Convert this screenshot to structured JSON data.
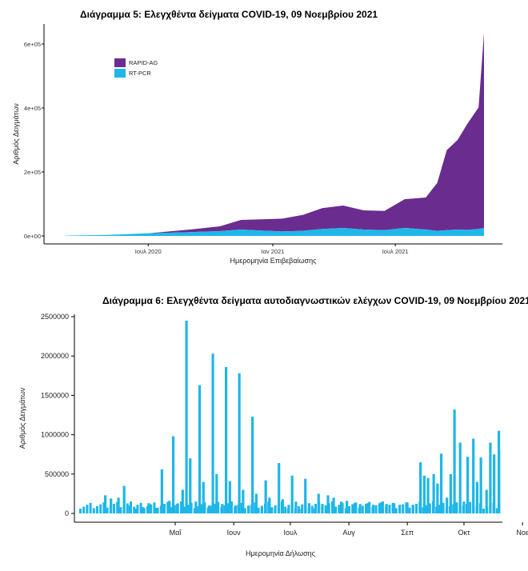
{
  "charts": [
    {
      "title": "Διάγραμμα 5: Ελεγχθέντα δείγματα COVID-19, 09 Νοεμβρίου 2021",
      "xlabel": "Ημερομηνία Επιβεβαίωσης",
      "ylabel": "Αριθμός Δειγμάτων",
      "y_ticks": [
        "0e+00",
        "2e+05",
        "4e+05",
        "6e+05"
      ],
      "x_ticks": [
        "Ιουλ 2020",
        "Ιαν 2021",
        "Ιουλ 2021"
      ],
      "legend": [
        "RAPID-AG",
        "RT-PCR"
      ]
    },
    {
      "title": "Διάγραμμα 6: Ελεγχθέντα δείγματα αυτοδιαγνωστικών ελέγχων COVID-19, 09 Νοεμβρίου 2021",
      "xlabel": "Ημερομηνία Δήλωσης",
      "ylabel": "Αριθμός Δειγμάτων",
      "y_ticks": [
        "0",
        "500000",
        "1000000",
        "1500000",
        "2000000",
        "2500000"
      ],
      "x_ticks": [
        "Μαΐ",
        "Ιουν",
        "Ιουλ",
        "Αυγ",
        "Σεπ",
        "Οκτ",
        "Νοε"
      ]
    }
  ],
  "chart_data": [
    {
      "type": "area",
      "title": "Διάγραμμα 5: Ελεγχθέντα δείγματα COVID-19, 09 Νοεμβρίου 2021",
      "xlabel": "Ημερομηνία Επιβεβαίωσης",
      "ylabel": "Αριθμός Δειγμάτων",
      "stacked": true,
      "legend_position": "top-left",
      "ylim": [
        0,
        640000
      ],
      "x_range": [
        "2020-03-01",
        "2021-11-09"
      ],
      "x": [
        "2020-03-01",
        "2020-05-01",
        "2020-07-01",
        "2020-09-01",
        "2020-10-15",
        "2020-11-15",
        "2020-12-15",
        "2021-01-15",
        "2021-02-15",
        "2021-03-15",
        "2021-04-15",
        "2021-05-15",
        "2021-06-15",
        "2021-07-15",
        "2021-08-15",
        "2021-09-01",
        "2021-09-15",
        "2021-10-01",
        "2021-10-15",
        "2021-11-01",
        "2021-11-09"
      ],
      "series": [
        {
          "name": "RT-PCR",
          "color": "#1fb6e8",
          "values": [
            1000,
            3000,
            8000,
            12000,
            15000,
            20000,
            17000,
            14000,
            16000,
            22000,
            25000,
            20000,
            18000,
            25000,
            20000,
            16000,
            18000,
            20000,
            19000,
            22000,
            25000
          ]
        },
        {
          "name": "RAPID-AG",
          "color": "#6a2c8f",
          "values": [
            0,
            0,
            0,
            8000,
            15000,
            30000,
            35000,
            40000,
            50000,
            65000,
            70000,
            60000,
            60000,
            90000,
            100000,
            150000,
            250000,
            280000,
            330000,
            380000,
            610000
          ]
        }
      ]
    },
    {
      "type": "bar",
      "title": "Διάγραμμα 6: Ελεγχθέντα δείγματα αυτοδιαγνωστικών ελέγχων COVID-19, 09 Νοεμβρίου 2021",
      "xlabel": "Ημερομηνία Δήλωσης",
      "ylabel": "Αριθμός Δειγμάτων",
      "color": "#1fb6e8",
      "ylim": [
        0,
        2500000
      ],
      "x_range": [
        "2021-04-06",
        "2021-11-10"
      ],
      "x": [
        "2021-04-06",
        "2021-04-09",
        "2021-04-13",
        "2021-04-16",
        "2021-04-19",
        "2021-04-22",
        "2021-04-26",
        "2021-04-29",
        "2021-05-03",
        "2021-05-06",
        "2021-05-10",
        "2021-05-12",
        "2021-05-14",
        "2021-05-17",
        "2021-05-19",
        "2021-05-21",
        "2021-05-24",
        "2021-05-26",
        "2021-05-28",
        "2021-05-31",
        "2021-06-02",
        "2021-06-04",
        "2021-06-07",
        "2021-06-09",
        "2021-06-11",
        "2021-06-14",
        "2021-06-16",
        "2021-06-18",
        "2021-06-21",
        "2021-06-23",
        "2021-06-25",
        "2021-06-28",
        "2021-06-30",
        "2021-07-02",
        "2021-07-05",
        "2021-07-07",
        "2021-07-09",
        "2021-07-12",
        "2021-07-14",
        "2021-07-16",
        "2021-07-19",
        "2021-07-21",
        "2021-07-23",
        "2021-07-26",
        "2021-07-28",
        "2021-07-30",
        "2021-08-02",
        "2021-08-05",
        "2021-08-09",
        "2021-08-12",
        "2021-08-16",
        "2021-08-19",
        "2021-08-23",
        "2021-08-26",
        "2021-08-30",
        "2021-09-02",
        "2021-09-06",
        "2021-09-09",
        "2021-09-13",
        "2021-09-16",
        "2021-09-20",
        "2021-09-22",
        "2021-09-24",
        "2021-09-27",
        "2021-09-29",
        "2021-10-01",
        "2021-10-04",
        "2021-10-06",
        "2021-10-08",
        "2021-10-11",
        "2021-10-13",
        "2021-10-15",
        "2021-10-18",
        "2021-10-20",
        "2021-10-22",
        "2021-10-25",
        "2021-10-27",
        "2021-10-29",
        "2021-11-01",
        "2021-11-03",
        "2021-11-05",
        "2021-11-08"
      ],
      "values": [
        230000,
        190000,
        200000,
        350000,
        100000,
        60000,
        80000,
        130000,
        70000,
        560000,
        160000,
        980000,
        120000,
        300000,
        2450000,
        700000,
        150000,
        1630000,
        400000,
        100000,
        2030000,
        500000,
        120000,
        1860000,
        410000,
        100000,
        1780000,
        300000,
        100000,
        1230000,
        250000,
        80000,
        420000,
        200000,
        60000,
        640000,
        180000,
        60000,
        480000,
        150000,
        60000,
        440000,
        130000,
        60000,
        250000,
        120000,
        230000,
        200000,
        150000,
        160000,
        130000,
        120000,
        130000,
        110000,
        140000,
        120000,
        130000,
        110000,
        140000,
        110000,
        650000,
        480000,
        450000,
        500000,
        380000,
        760000,
        200000,
        500000,
        1320000,
        900000,
        150000,
        720000,
        950000,
        400000,
        710000,
        300000,
        900000,
        750000,
        800000,
        1050000,
        790000,
        380000
      ]
    }
  ]
}
